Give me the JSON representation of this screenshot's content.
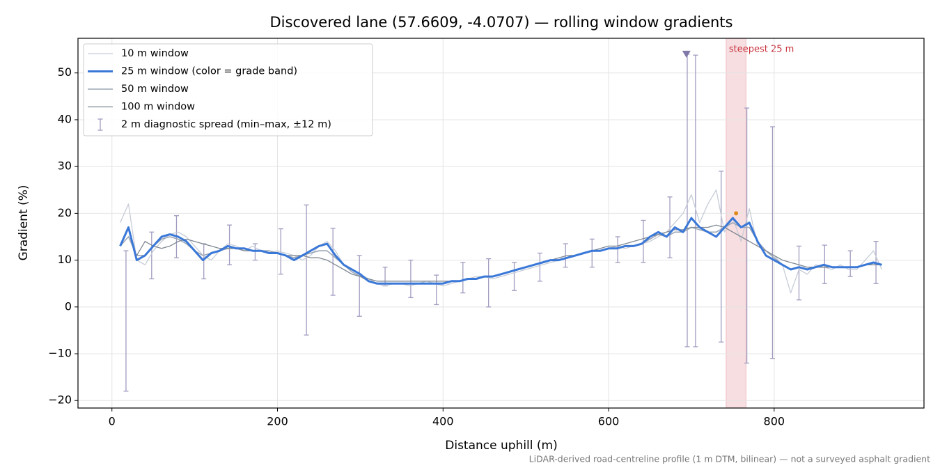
{
  "chart_data": {
    "type": "line",
    "title": "Discovered lane (57.6609, -4.0707) — rolling window gradients",
    "x_label": "Distance uphill (m)",
    "y_label": "Gradient (%)",
    "footnote": "LiDAR-derived road-centreline profile (1 m DTM, bilinear) — not a surveyed asphalt gradient",
    "xlim": [
      -41,
      981
    ],
    "ylim": [
      -21.6,
      57.4
    ],
    "xticks": [
      0,
      200,
      400,
      600,
      800
    ],
    "yticks": [
      {
        "value": -20,
        "label": "−20"
      },
      {
        "value": -10,
        "label": "−10"
      },
      0,
      10,
      20,
      30,
      40,
      50
    ],
    "grid": true,
    "legend": "upper left",
    "x": [
      10,
      20,
      30,
      40,
      50,
      60,
      70,
      80,
      90,
      100,
      110,
      120,
      130,
      140,
      150,
      160,
      170,
      180,
      190,
      200,
      210,
      220,
      230,
      240,
      250,
      260,
      270,
      280,
      290,
      300,
      310,
      320,
      330,
      340,
      350,
      360,
      370,
      380,
      390,
      400,
      410,
      420,
      430,
      440,
      450,
      460,
      470,
      480,
      490,
      500,
      510,
      520,
      530,
      540,
      550,
      560,
      570,
      580,
      590,
      600,
      610,
      620,
      630,
      640,
      650,
      660,
      670,
      680,
      690,
      700,
      710,
      720,
      730,
      740,
      750,
      760,
      770,
      780,
      790,
      800,
      810,
      820,
      830,
      840,
      850,
      860,
      870,
      880,
      890,
      900,
      910,
      920,
      930
    ],
    "series": [
      {
        "name": "10 m window",
        "color": "#c6ccd6",
        "linewidth": 1.3,
        "values": [
          18,
          22,
          10,
          9,
          12,
          14,
          15.5,
          16,
          15,
          13,
          11,
          10,
          12,
          13.5,
          13,
          12,
          13,
          12,
          11.5,
          12,
          11.5,
          11,
          10,
          11,
          13,
          14,
          12,
          9,
          8,
          7,
          6,
          5,
          4.5,
          5,
          5,
          4.5,
          5,
          5.5,
          5,
          4.5,
          5,
          5.5,
          6,
          6.5,
          6.5,
          6,
          6.5,
          7,
          7.5,
          8,
          8.5,
          9,
          9.5,
          10,
          10.5,
          11,
          11.5,
          12,
          12,
          12.5,
          13,
          12.5,
          13,
          13.5,
          14,
          15,
          16,
          18,
          20,
          24,
          18,
          22,
          25,
          16,
          19,
          14,
          21,
          13,
          12,
          11,
          9,
          3,
          8,
          7,
          9,
          8.5,
          8,
          9,
          8,
          8,
          10,
          12,
          8
        ]
      },
      {
        "name": "25 m window (color = grade band)",
        "color": "#3a78d8",
        "linewidth": 3,
        "values": [
          13,
          17,
          10,
          11,
          13,
          15,
          15.5,
          15,
          14,
          12,
          10,
          11.5,
          12,
          13,
          12.5,
          12.5,
          12,
          12,
          11.5,
          11.5,
          11,
          10,
          11,
          12,
          13,
          13.5,
          11,
          9,
          8,
          7,
          5.5,
          5,
          5,
          5,
          5,
          5,
          5,
          5,
          5,
          5,
          5.5,
          5.5,
          6,
          6,
          6.5,
          6.5,
          7,
          7.5,
          8,
          8.5,
          9,
          9.5,
          10,
          10,
          10.5,
          11,
          11.5,
          12,
          12,
          12.5,
          12.5,
          13,
          13,
          13.5,
          15,
          16,
          15,
          17,
          16,
          19,
          17,
          16,
          15,
          17,
          19,
          17,
          18,
          14,
          11,
          10,
          9,
          8,
          8.5,
          8,
          8.5,
          9,
          8.5,
          8.5,
          8.5,
          8.5,
          9,
          9.5,
          9
        ]
      },
      {
        "name": "50 m window",
        "color": "#9aa5b4",
        "linewidth": 1.6,
        "values": [
          13,
          15,
          11,
          11,
          13,
          14.5,
          15,
          14.5,
          13.5,
          12,
          11,
          11.5,
          12,
          12.5,
          12.5,
          12.5,
          12,
          12,
          12,
          11.5,
          11,
          10.5,
          11,
          11.5,
          12,
          12,
          10.5,
          9,
          7.5,
          6.5,
          5.5,
          5,
          5,
          5,
          5,
          5,
          5,
          5,
          5,
          5,
          5.5,
          5.5,
          6,
          6,
          6.5,
          6.5,
          7,
          7.5,
          8,
          8.5,
          9,
          9.5,
          10,
          10,
          10.5,
          11,
          11.5,
          12,
          12,
          12.5,
          12.5,
          13,
          13,
          13.5,
          14.5,
          15.5,
          15,
          16,
          16,
          17,
          16.5,
          16,
          16,
          17,
          18,
          17,
          17,
          14,
          12,
          10.5,
          9,
          8,
          8.5,
          8,
          8.5,
          8.5,
          8.5,
          8.5,
          8.5,
          8.5,
          9,
          9.5,
          9
        ]
      },
      {
        "name": "100 m window",
        "color": "#7f8791",
        "linewidth": 1.3,
        "values": [
          null,
          null,
          11,
          14,
          13,
          12.5,
          13,
          14,
          14.5,
          14,
          13.5,
          13,
          12.5,
          12.5,
          12.5,
          12,
          12,
          12,
          11.5,
          11.5,
          11,
          11,
          11,
          10.5,
          10.5,
          10,
          9,
          8,
          7,
          6.5,
          6,
          5.5,
          5.5,
          5.5,
          5.5,
          5.5,
          5.5,
          5.5,
          5.5,
          5.5,
          5.5,
          5.5,
          6,
          6,
          6.5,
          6.5,
          7,
          7.5,
          8,
          8.5,
          9,
          9.5,
          10,
          10.5,
          11,
          11,
          11.5,
          12,
          12.5,
          13,
          13,
          13.5,
          14,
          14.5,
          15,
          15.5,
          16,
          16.5,
          16.5,
          17,
          17,
          17,
          17.5,
          17,
          16,
          15,
          14,
          13,
          12,
          11,
          10,
          9.5,
          9,
          8.5,
          8.5,
          8.5,
          8.5,
          8.5,
          8.5,
          8.5,
          9,
          9,
          9
        ]
      }
    ],
    "error_bars": {
      "name": "2 m diagnostic spread (min–max, ±12 m)",
      "color": "#a09cc0",
      "x": [
        17,
        48,
        78,
        111,
        142,
        173,
        204,
        235,
        267,
        299,
        330,
        361,
        392,
        424,
        455,
        486,
        517,
        548,
        580,
        611,
        642,
        674,
        695,
        705,
        736,
        767,
        798,
        830,
        861,
        892,
        923
      ],
      "min": [
        -18,
        6,
        10.5,
        6,
        9,
        10,
        7,
        -6,
        2.5,
        -2,
        4.5,
        2,
        0.5,
        3,
        0,
        3.5,
        5.5,
        8.5,
        8.5,
        9.5,
        9.5,
        10.5,
        -8.5,
        -8.5,
        -7.5,
        -12,
        -11,
        1.5,
        5,
        6.5,
        5
      ],
      "max": [
        12,
        16,
        19.5,
        13.5,
        17.5,
        13.5,
        16.7,
        21.8,
        16.8,
        11,
        8.5,
        10,
        6.8,
        9.5,
        10.3,
        9.5,
        11.5,
        13.5,
        14.5,
        15,
        18.5,
        23.5,
        54,
        53.8,
        29,
        42.5,
        38.5,
        13,
        13.2,
        12,
        14
      ]
    },
    "highlight": {
      "x": [
        742,
        766
      ],
      "label": "steepest 25 m",
      "color": "#e8a0a8"
    },
    "markers": [
      {
        "x": 694,
        "y": 54,
        "color": "#8078a8"
      },
      {
        "x": 754,
        "y": 20,
        "color": "#e08a1a"
      }
    ]
  }
}
